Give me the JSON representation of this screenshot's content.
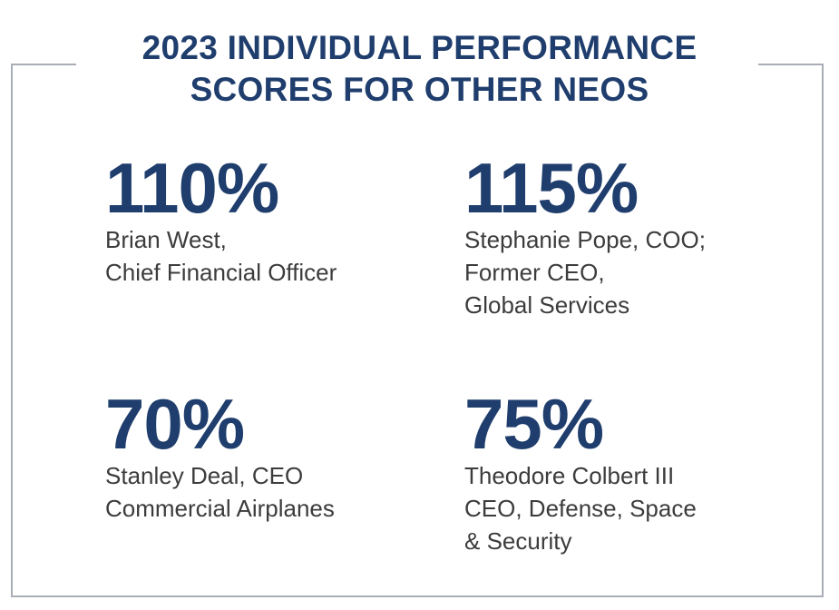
{
  "title": {
    "line1": "2023 INDIVIDUAL PERFORMANCE",
    "line2": "SCORES FOR OTHER NEOS"
  },
  "stats": [
    {
      "value": "110%",
      "lines": [
        "Brian West,",
        "Chief Financial Officer"
      ]
    },
    {
      "value": "115%",
      "lines": [
        "Stephanie Pope, COO;",
        "Former CEO,",
        "Global Services"
      ]
    },
    {
      "value": "70%",
      "lines": [
        "Stanley Deal, CEO",
        "Commercial Airplanes"
      ]
    },
    {
      "value": "75%",
      "lines": [
        "Theodore Colbert III",
        "CEO, Defense, Space",
        "& Security"
      ]
    }
  ],
  "colors": {
    "accent": "#1f3e6d",
    "text": "#3c3c3c",
    "frame": "#a9adb6"
  }
}
